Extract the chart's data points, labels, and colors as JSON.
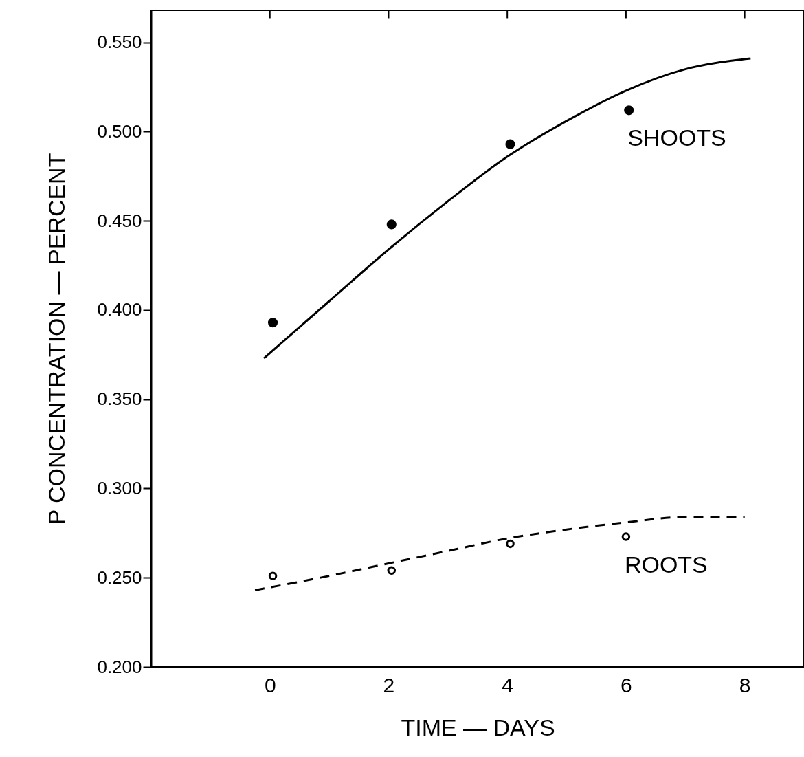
{
  "chart_data": {
    "type": "scatter",
    "xlabel": "TIME — DAYS",
    "ylabel": "P  CONCENTRATION — PERCENT",
    "xlim": [
      -2,
      9
    ],
    "xticks": [
      0,
      2,
      4,
      6,
      8
    ],
    "ylim": [
      0.2,
      0.568
    ],
    "yticks": [
      {
        "value": 0.2,
        "label": "0.200"
      },
      {
        "value": 0.25,
        "label": "0.250"
      },
      {
        "value": 0.3,
        "label": "0.300"
      },
      {
        "value": 0.35,
        "label": "0.350"
      },
      {
        "value": 0.4,
        "label": "0.400"
      },
      {
        "value": 0.45,
        "label": "0.450"
      },
      {
        "value": 0.5,
        "label": "0.500"
      },
      {
        "value": 0.55,
        "label": "0.550"
      }
    ],
    "grid": false,
    "series": [
      {
        "name": "SHOOTS",
        "color": "#000000",
        "marker": "circle",
        "x": [
          0.05,
          2.05,
          4.05,
          6.05
        ],
        "values": [
          0.393,
          0.448,
          0.493,
          0.512
        ]
      },
      {
        "name": "ROOTS",
        "color": "#000000",
        "marker": "circle",
        "x": [
          0.05,
          2.05,
          4.05,
          6.0
        ],
        "values": [
          0.251,
          0.254,
          0.269,
          0.273
        ]
      },
      {
        "type": "line",
        "color": "#000000",
        "line_style": "solid",
        "x": [
          -0.1,
          1,
          2,
          3,
          4,
          5,
          6,
          7,
          8.1
        ],
        "values": [
          0.373,
          0.405,
          0.434,
          0.461,
          0.486,
          0.506,
          0.523,
          0.535,
          0.541
        ]
      },
      {
        "type": "line",
        "color": "#000000",
        "line_style": "dashed",
        "x": [
          -0.25,
          1,
          2,
          3,
          4,
          5,
          6,
          7,
          8
        ],
        "values": [
          0.243,
          0.251,
          0.258,
          0.265,
          0.272,
          0.277,
          0.281,
          0.284,
          0.284
        ]
      }
    ]
  }
}
